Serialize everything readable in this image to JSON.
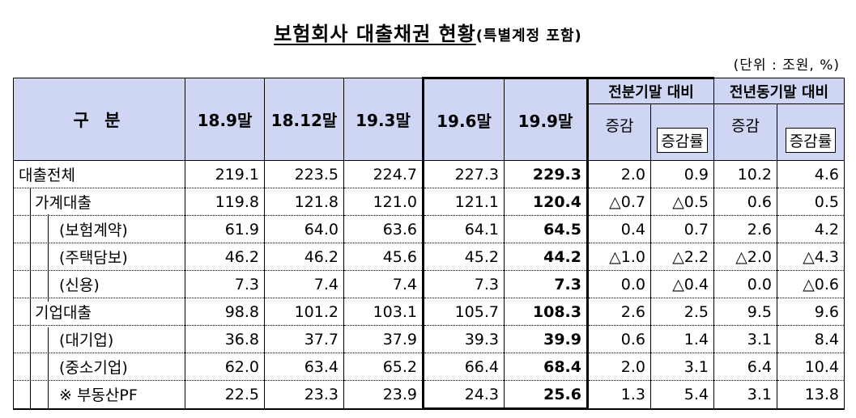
{
  "title": "보험회사 대출채권 현황",
  "subtitle": "(특별계정 포함)",
  "unit": "(단위 : 조원, %)",
  "header": {
    "category": "구 분",
    "periods": [
      "18.9말",
      "18.12말",
      "19.3말",
      "19.6말",
      "19.9말"
    ],
    "group_prev_q": "전분기말 대비",
    "group_prev_y": "전년동기말 대비",
    "diff": "증감",
    "rate": "증감률"
  },
  "rows": [
    {
      "label": "대출전체",
      "level": 0,
      "values": [
        "219.1",
        "223.5",
        "224.7",
        "227.3",
        "229.3"
      ],
      "q_diff": "2.0",
      "q_rate": "0.9",
      "y_diff": "10.2",
      "y_rate": "4.6"
    },
    {
      "label": "가계대출",
      "level": 1,
      "values": [
        "119.8",
        "121.8",
        "121.0",
        "121.1",
        "120.4"
      ],
      "q_diff": "△0.7",
      "q_rate": "△0.5",
      "y_diff": "0.6",
      "y_rate": "0.5"
    },
    {
      "label": "(보험계약)",
      "level": 2,
      "values": [
        "61.9",
        "64.0",
        "63.6",
        "64.1",
        "64.5"
      ],
      "q_diff": "0.4",
      "q_rate": "0.7",
      "y_diff": "2.6",
      "y_rate": "4.2"
    },
    {
      "label": "(주택담보)",
      "level": 2,
      "values": [
        "46.2",
        "46.2",
        "45.6",
        "45.2",
        "44.2"
      ],
      "q_diff": "△1.0",
      "q_rate": "△2.2",
      "y_diff": "△2.0",
      "y_rate": "△4.3"
    },
    {
      "label": "(신용)",
      "level": 2,
      "values": [
        "7.3",
        "7.4",
        "7.4",
        "7.3",
        "7.3"
      ],
      "q_diff": "0.0",
      "q_rate": "△0.4",
      "y_diff": "0.0",
      "y_rate": "△0.6"
    },
    {
      "label": "기업대출",
      "level": 1,
      "values": [
        "98.8",
        "101.2",
        "103.1",
        "105.7",
        "108.3"
      ],
      "q_diff": "2.6",
      "q_rate": "2.5",
      "y_diff": "9.5",
      "y_rate": "9.6"
    },
    {
      "label": "(대기업)",
      "level": 2,
      "values": [
        "36.8",
        "37.7",
        "37.9",
        "39.3",
        "39.9"
      ],
      "q_diff": "0.6",
      "q_rate": "1.4",
      "y_diff": "3.1",
      "y_rate": "8.4"
    },
    {
      "label": "(중소기업)",
      "level": 2,
      "values": [
        "62.0",
        "63.4",
        "65.2",
        "66.4",
        "68.4"
      ],
      "q_diff": "2.0",
      "q_rate": "3.1",
      "y_diff": "6.4",
      "y_rate": "10.4"
    },
    {
      "label": "※ 부동산PF",
      "level": 2,
      "values": [
        "22.5",
        "23.3",
        "23.9",
        "24.3",
        "25.6"
      ],
      "q_diff": "1.3",
      "q_rate": "5.4",
      "y_diff": "3.1",
      "y_rate": "13.8"
    }
  ]
}
